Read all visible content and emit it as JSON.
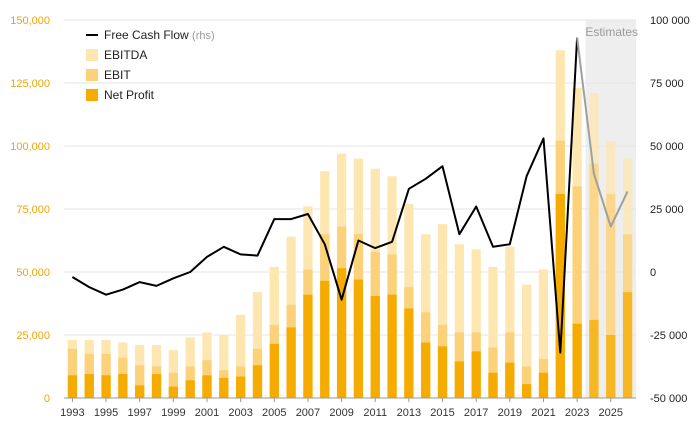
{
  "chart_data": {
    "type": "bar",
    "x": [
      1993,
      1994,
      1995,
      1996,
      1997,
      1998,
      1999,
      2000,
      2001,
      2002,
      2003,
      2004,
      2005,
      2006,
      2007,
      2008,
      2009,
      2010,
      2011,
      2012,
      2013,
      2014,
      2015,
      2016,
      2017,
      2018,
      2019,
      2020,
      2021,
      2022,
      2023,
      2024,
      2025,
      2026
    ],
    "estimates_from": 2024,
    "estimates_label": "Estimates",
    "x_tick_labels": [
      "1993",
      "1995",
      "1997",
      "1999",
      "2001",
      "2003",
      "2005",
      "2007",
      "2009",
      "2011",
      "2013",
      "2015",
      "2017",
      "2019",
      "2021",
      "2023",
      "2025"
    ],
    "y_left": {
      "ylim": [
        0,
        150000
      ],
      "ticks": [
        0,
        25000,
        50000,
        75000,
        100000,
        125000,
        150000
      ],
      "tick_labels": [
        "0",
        "25,000",
        "50,000",
        "75,000",
        "100,000",
        "125,000",
        "150,000"
      ]
    },
    "y_right": {
      "ylim": [
        -50000,
        100000
      ],
      "ticks": [
        -50000,
        -25000,
        0,
        25000,
        50000,
        75000,
        100000
      ],
      "tick_labels": [
        "-50 000",
        "-25 000",
        "0",
        "25 000",
        "50 000",
        "75 000",
        "100 000"
      ]
    },
    "grid": true,
    "legend_position": "top-left",
    "series": [
      {
        "name": "EBITDA",
        "type": "bar",
        "axis": "left",
        "color": "#fde6b0",
        "values": [
          23000,
          23000,
          23000,
          22000,
          21000,
          21000,
          19000,
          24000,
          26000,
          25000,
          33000,
          42000,
          52000,
          64000,
          76000,
          90000,
          97000,
          95000,
          91000,
          88000,
          77000,
          65000,
          69000,
          61000,
          59000,
          52000,
          60000,
          45000,
          51000,
          138000,
          123000,
          121000,
          102000,
          95000
        ]
      },
      {
        "name": "EBIT",
        "type": "bar",
        "axis": "left",
        "color": "#fbd27a",
        "values": [
          19500,
          17500,
          17500,
          16000,
          13000,
          12500,
          10000,
          12500,
          15000,
          11000,
          12500,
          19500,
          29000,
          37000,
          51000,
          65000,
          68000,
          65000,
          58000,
          57000,
          44000,
          34000,
          29000,
          26000,
          26000,
          20000,
          26000,
          12500,
          15500,
          102000,
          84000,
          93000,
          81000,
          65000
        ]
      },
      {
        "name": "Net Profit",
        "type": "bar",
        "axis": "left",
        "color": "#f5ab00",
        "values": [
          9000,
          9500,
          9000,
          9500,
          5000,
          9500,
          4500,
          7000,
          9000,
          8000,
          8500,
          13000,
          21500,
          28000,
          41000,
          46500,
          51500,
          47000,
          40500,
          41000,
          35500,
          22000,
          20500,
          14500,
          18500,
          10000,
          14000,
          5500,
          10000,
          81000,
          29500,
          31000,
          25000,
          42000
        ]
      },
      {
        "name": "Free Cash Flow",
        "note": "(rhs)",
        "type": "line",
        "axis": "right",
        "color": "#000000",
        "estimate_color": "#a0a0a0",
        "values": [
          -2000,
          -6000,
          -9000,
          -7000,
          -4000,
          -5500,
          -2500,
          0,
          6000,
          10000,
          7000,
          6500,
          21000,
          21000,
          23000,
          11000,
          -11000,
          12500,
          9500,
          12000,
          33000,
          37000,
          42000,
          15000,
          26000,
          10000,
          11000,
          38000,
          53000,
          -32000,
          93000,
          39000,
          18000,
          32000
        ]
      }
    ]
  }
}
